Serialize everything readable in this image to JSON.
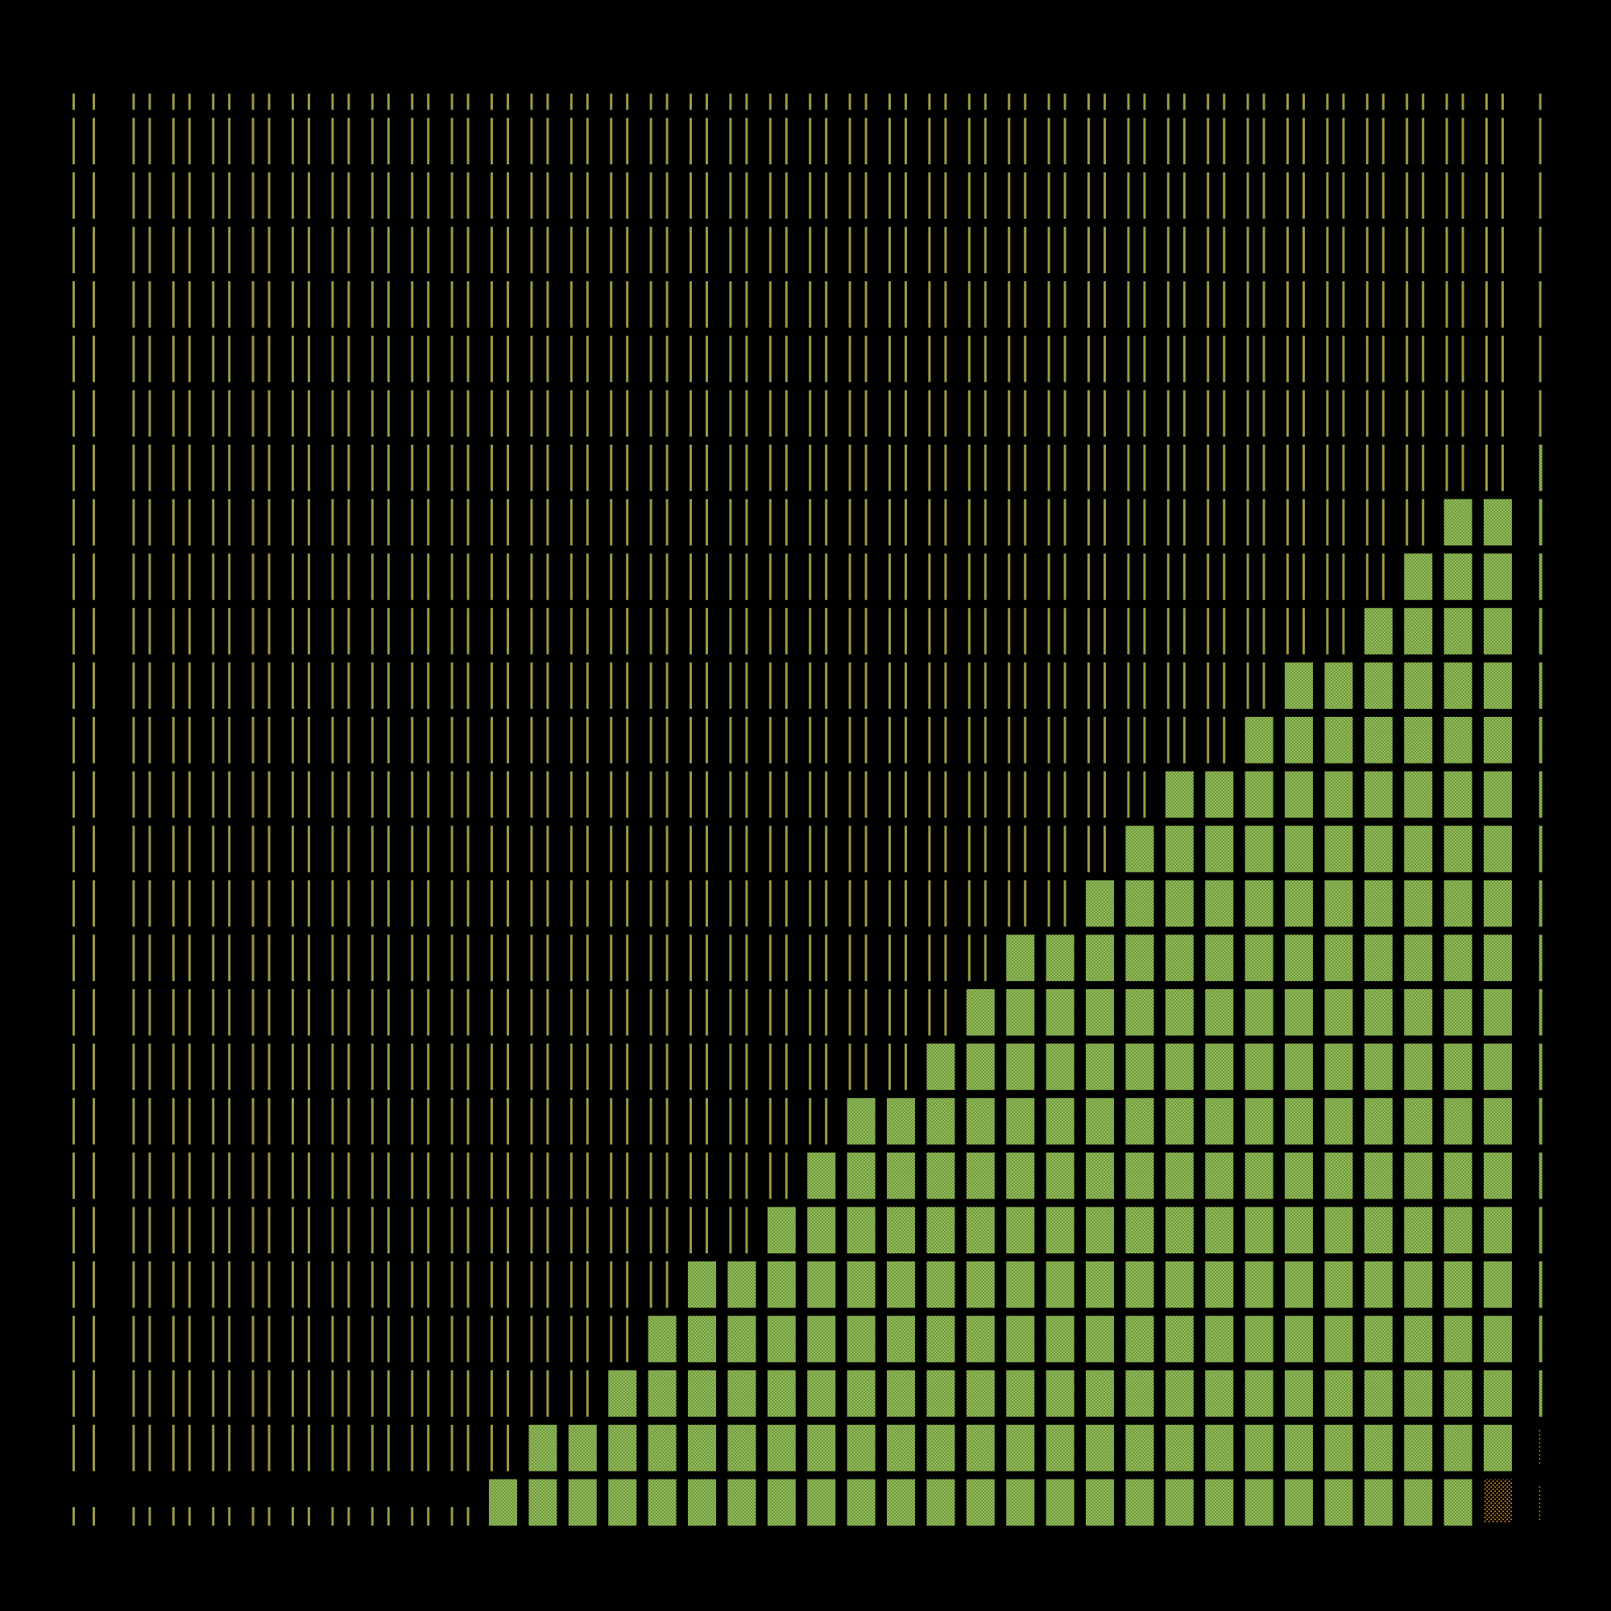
{
  "grid": {
    "columns": 37,
    "rows": 27
  },
  "colors": {
    "background": "#000000",
    "stripe": "#9c9a43",
    "block": "#8fc055",
    "block_dots": "#54612f",
    "accent_dots": "#e0901d",
    "accent_cell_bg": "#2a1a05"
  },
  "staircase": {
    "description_free": true,
    "column_heights": [
      0,
      0,
      0,
      0,
      0,
      0,
      0,
      0,
      0,
      0,
      1,
      2,
      2,
      3,
      4,
      5,
      5,
      6,
      7,
      8,
      8,
      9,
      10,
      11,
      11,
      12,
      13,
      14,
      14,
      15,
      16,
      16,
      17,
      18,
      19,
      19,
      0
    ],
    "accent_cell": {
      "column": 35,
      "row": 0
    },
    "edge_column": {
      "column": 36,
      "height": 20
    }
  },
  "icons": {
    "stripe": "vertical-line-pair-icon",
    "block": "dotted-block-icon",
    "accent": "dotted-orange-icon"
  }
}
